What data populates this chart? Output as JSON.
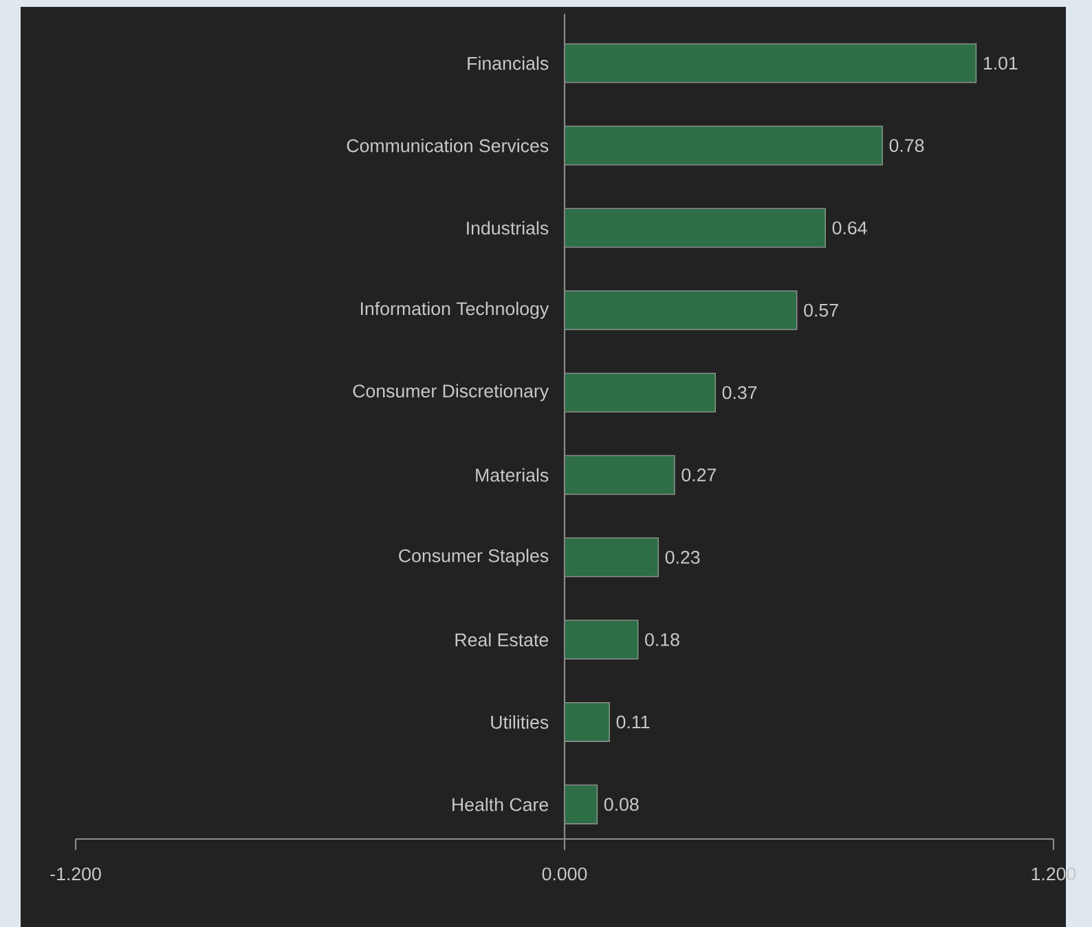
{
  "chart_data": {
    "type": "bar",
    "orientation": "horizontal",
    "categories": [
      "Financials",
      "Communication Services",
      "Industrials",
      "Information Technology",
      "Consumer Discretionary",
      "Materials",
      "Consumer Staples",
      "Real Estate",
      "Utilities",
      "Health Care"
    ],
    "values": [
      1.01,
      0.78,
      0.64,
      0.57,
      0.37,
      0.27,
      0.23,
      0.18,
      0.11,
      0.08
    ],
    "color": "#2d6e47",
    "xlim": [
      -1.2,
      1.2
    ],
    "xticks": [
      {
        "value": -1.2,
        "label": "-1.200"
      },
      {
        "value": 0,
        "label": "0.000"
      },
      {
        "value": 1.2,
        "label": "1.200"
      }
    ],
    "data_labels": true
  }
}
